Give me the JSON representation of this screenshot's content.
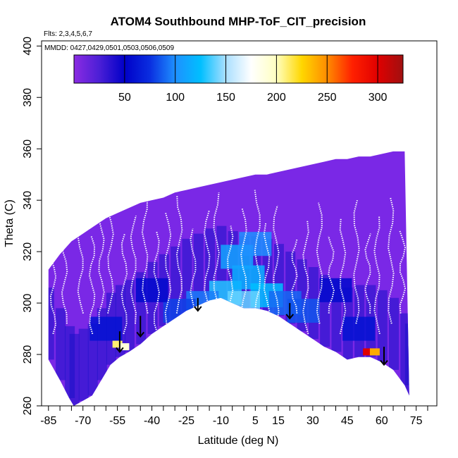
{
  "chart_data": {
    "type": "heatmap",
    "title": "ATOM4 Southbound MHP-ToF_CIT_precision",
    "annotations": {
      "flights": "Flts: 2,3,4,5,6,7",
      "dates": "MMDD: 0427,0429,0501,0503,0506,0509"
    },
    "xlabel": "Latitude (deg N)",
    "ylabel": "Theta (C)",
    "xlim": [
      -88,
      84
    ],
    "ylim": [
      260,
      402
    ],
    "x_ticks": [
      -85,
      -70,
      -55,
      -40,
      -25,
      -10,
      5,
      15,
      30,
      45,
      60,
      75
    ],
    "x_minor_step": 5,
    "y_ticks": [
      260,
      280,
      300,
      320,
      340,
      360,
      380,
      400
    ],
    "colorbar": {
      "range": [
        0,
        325
      ],
      "ticks": [
        50,
        100,
        150,
        200,
        250,
        300
      ],
      "colors": [
        "#8b2be2",
        "#4b1fd6",
        "#0000c8",
        "#0a2ee0",
        "#1e90ff",
        "#00bfff",
        "#aadfff",
        "#ffffff",
        "#ffffc0",
        "#ffd700",
        "#ff8c00",
        "#ff2000",
        "#e00000",
        "#a01010"
      ]
    },
    "surface_theta": [
      [
        -85,
        278
      ],
      [
        -80,
        270
      ],
      [
        -76,
        263
      ],
      [
        -74,
        260
      ],
      [
        -70,
        262
      ],
      [
        -66,
        264
      ],
      [
        -62,
        270
      ],
      [
        -58,
        276
      ],
      [
        -54,
        279
      ],
      [
        -50,
        281
      ],
      [
        -45,
        284
      ],
      [
        -40,
        288
      ],
      [
        -35,
        291
      ],
      [
        -30,
        294
      ],
      [
        -25,
        297
      ],
      [
        -20,
        299
      ],
      [
        -15,
        301
      ],
      [
        -10,
        302
      ],
      [
        -5,
        300
      ],
      [
        0,
        298
      ],
      [
        5,
        298
      ],
      [
        10,
        297
      ],
      [
        15,
        295
      ],
      [
        20,
        292
      ],
      [
        25,
        289
      ],
      [
        30,
        286
      ],
      [
        35,
        283
      ],
      [
        40,
        281
      ],
      [
        45,
        278
      ],
      [
        50,
        279
      ],
      [
        55,
        279
      ],
      [
        60,
        277
      ],
      [
        65,
        274
      ],
      [
        70,
        268
      ],
      [
        72,
        264
      ]
    ],
    "top_theta": [
      [
        -85,
        313
      ],
      [
        -80,
        319
      ],
      [
        -75,
        324
      ],
      [
        -70,
        327
      ],
      [
        -65,
        330
      ],
      [
        -60,
        333
      ],
      [
        -55,
        335
      ],
      [
        -50,
        337
      ],
      [
        -45,
        339
      ],
      [
        -40,
        340
      ],
      [
        -35,
        341
      ],
      [
        -30,
        343
      ],
      [
        -25,
        344
      ],
      [
        -20,
        345
      ],
      [
        -15,
        346
      ],
      [
        -10,
        347
      ],
      [
        -5,
        348
      ],
      [
        0,
        349
      ],
      [
        5,
        350
      ],
      [
        10,
        350
      ],
      [
        15,
        351
      ],
      [
        20,
        352
      ],
      [
        25,
        353
      ],
      [
        30,
        354
      ],
      [
        35,
        355
      ],
      [
        40,
        356
      ],
      [
        45,
        356
      ],
      [
        50,
        357
      ],
      [
        55,
        357
      ],
      [
        60,
        358
      ],
      [
        65,
        359
      ],
      [
        70,
        359
      ]
    ],
    "cloud_cells": [
      {
        "x": -8,
        "y": 304,
        "v": 130
      },
      {
        "x": 2,
        "y": 310,
        "v": 118
      },
      {
        "x": -3,
        "y": 318,
        "v": 110
      },
      {
        "x": 10,
        "y": 303,
        "v": 125
      },
      {
        "x": 5,
        "y": 323,
        "v": 100
      },
      {
        "x": -18,
        "y": 300,
        "v": 95
      },
      {
        "x": 18,
        "y": 300,
        "v": 90
      },
      {
        "x": -28,
        "y": 297,
        "v": 80
      },
      {
        "x": 26,
        "y": 297,
        "v": 85
      },
      {
        "x": 0,
        "y": 300,
        "v": 140
      },
      {
        "x": -55,
        "y": 284,
        "v": 210
      },
      {
        "x": -52,
        "y": 283,
        "v": 190
      },
      {
        "x": 54,
        "y": 281,
        "v": 300
      },
      {
        "x": 57,
        "y": 281,
        "v": 240
      },
      {
        "x": -60,
        "y": 290,
        "v": 60
      },
      {
        "x": 50,
        "y": 290,
        "v": 60
      },
      {
        "x": 40,
        "y": 305,
        "v": 55
      },
      {
        "x": -40,
        "y": 305,
        "v": 55
      }
    ],
    "arrows": [
      {
        "lat": -54,
        "theta_top": 289,
        "theta_tip": 281
      },
      {
        "lat": -45,
        "theta_top": 295,
        "theta_tip": 287
      },
      {
        "lat": -20,
        "theta_top": 302,
        "theta_tip": 297
      },
      {
        "lat": 20,
        "theta_top": 300,
        "theta_tip": 294
      },
      {
        "lat": 61,
        "theta_top": 283,
        "theta_tip": 276
      }
    ]
  }
}
